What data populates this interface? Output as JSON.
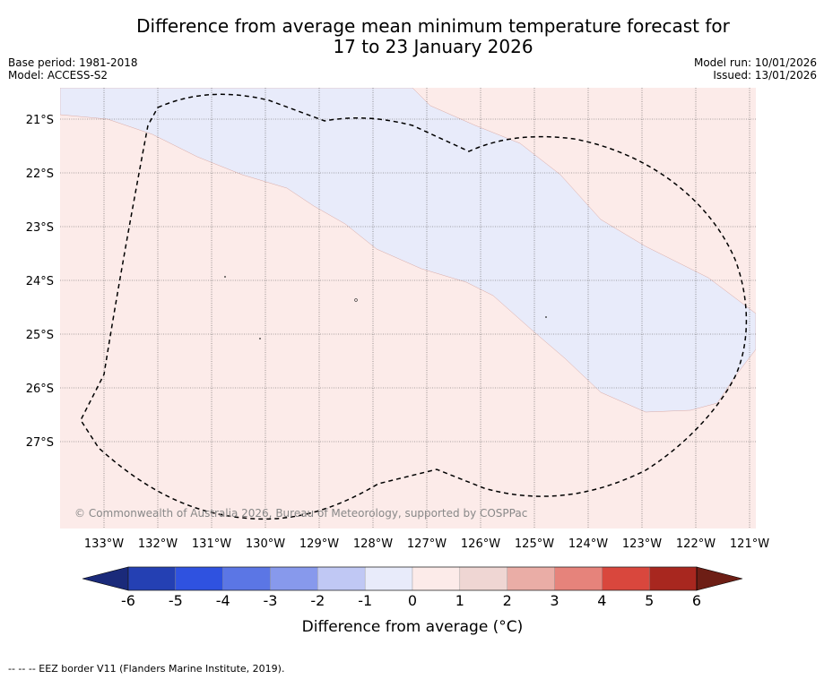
{
  "title": {
    "line1": "Difference from average mean minimum temperature forecast for",
    "line2": "17 to 23 January 2026"
  },
  "meta": {
    "base_period": "Base period: 1981-2018",
    "model": "Model: ACCESS-S2",
    "model_run": "Model run: 10/01/2026",
    "issued": "Issued: 13/01/2026"
  },
  "map": {
    "lat_labels": [
      "21°S",
      "22°S",
      "23°S",
      "24°S",
      "25°S",
      "26°S",
      "27°S"
    ],
    "lon_labels": [
      "133°W",
      "132°W",
      "131°W",
      "130°W",
      "129°W",
      "128°W",
      "127°W",
      "126°W",
      "125°W",
      "124°W",
      "123°W",
      "122°W",
      "121°W"
    ],
    "copyright": "© Commonwealth of Australia 2026, Bureau of Meteorology, supported by COSPPac",
    "colors": {
      "warm_anomaly": "#fcebe9",
      "cool_anomaly": "#e8ebfa"
    }
  },
  "colorbar": {
    "ticks": [
      "-6",
      "-5",
      "-4",
      "-3",
      "-2",
      "-1",
      "0",
      "1",
      "2",
      "3",
      "4",
      "5",
      "6"
    ],
    "colors": [
      "#1a2a7a",
      "#2440b3",
      "#2f52e0",
      "#5b76e5",
      "#8799ec",
      "#c0c8f4",
      "#e8ebfa",
      "#fcebe9",
      "#efd6d3",
      "#eaada6",
      "#e6837b",
      "#d9473d",
      "#a8271f",
      "#6d1e15"
    ],
    "label": "Difference from average (°C)"
  },
  "footer": "-- -- -- EEZ border V11 (Flanders Marine Institute, 2019)."
}
